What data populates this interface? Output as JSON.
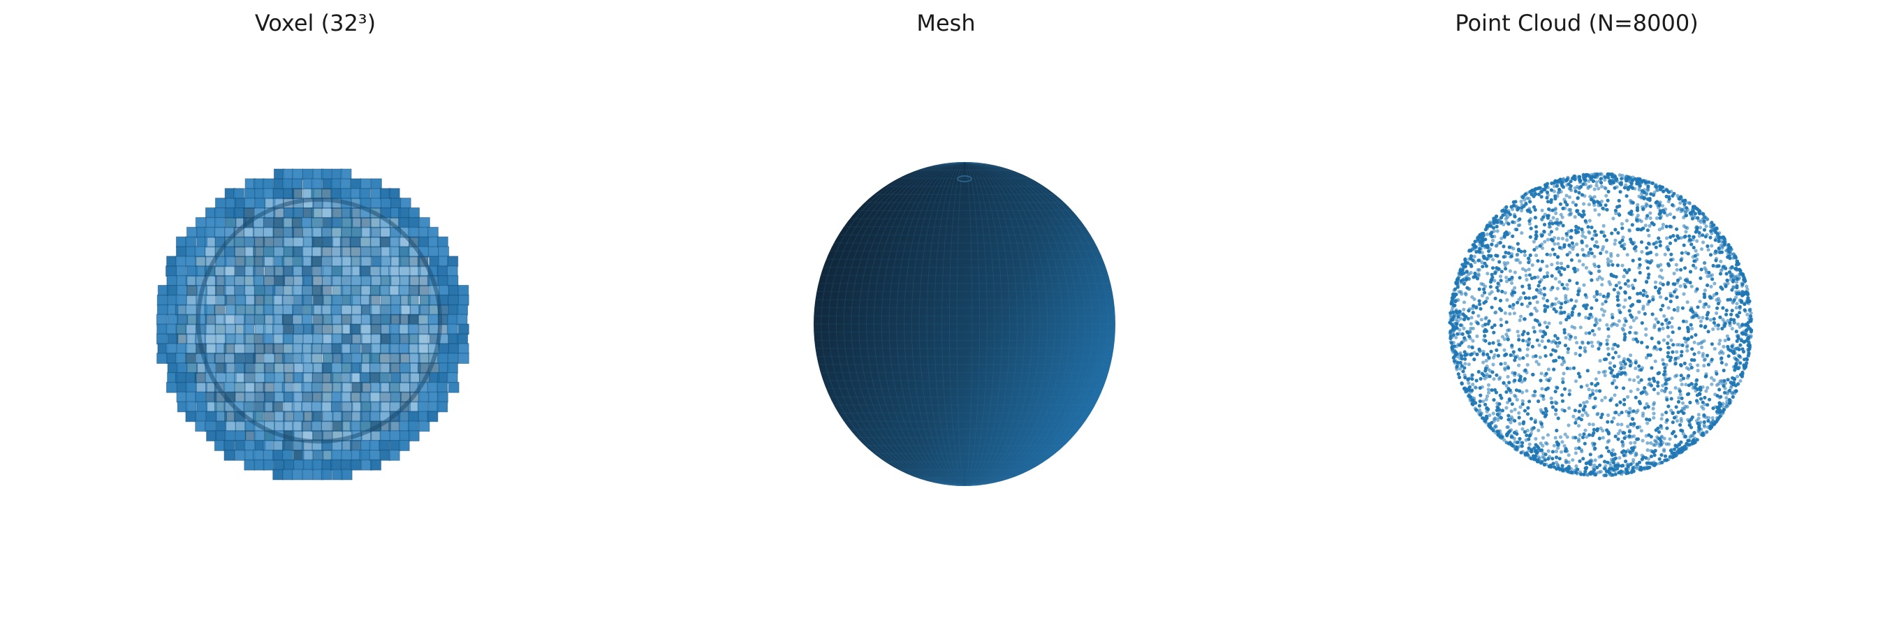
{
  "panels": [
    {
      "title": "Voxel (32³)",
      "kind": "voxel",
      "resolution": 32
    },
    {
      "title": "Mesh",
      "kind": "mesh"
    },
    {
      "title": "Point Cloud (N=8000)",
      "kind": "point_cloud",
      "count": 8000
    }
  ],
  "colors": {
    "base": "#1f77b4",
    "dark": "#102a3f",
    "edge": "#164a70",
    "light": "#4a93c6"
  }
}
